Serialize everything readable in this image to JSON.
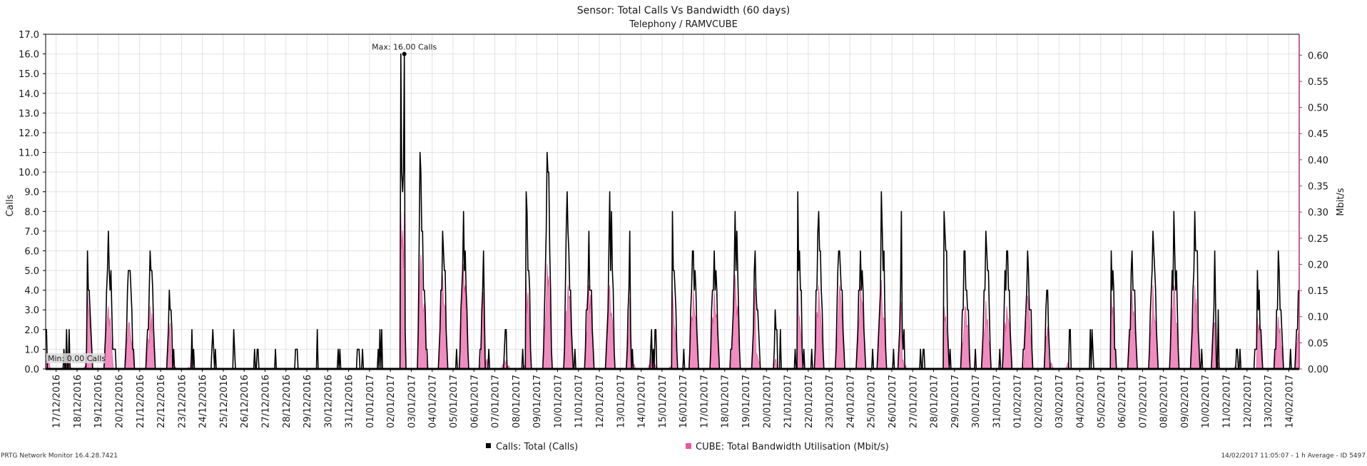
{
  "header": {
    "title": "Sensor: Total Calls Vs Bandwidth (60 days)",
    "subtitle": "Telephony / RAMVCUBE"
  },
  "footer": {
    "left": "PRTG Network Monitor 16.4.28.7421",
    "right": "14/02/2017 11:05:07 - 1 h Average - ID 5497"
  },
  "colors": {
    "calls": "#000000",
    "bandwidth": "#e8569c",
    "bandwidth_fill": "#f08cc0",
    "right_axis": "#b0306a",
    "grid": "#e2e2e2"
  },
  "chart_data": {
    "type": "line",
    "title": "Sensor: Total Calls Vs Bandwidth (60 days)",
    "subtitle": "Telephony / RAMVCUBE",
    "ylabel": "Calls",
    "y2label": "Mbit/s",
    "ylim": [
      0,
      17
    ],
    "y2lim": [
      0,
      0.64
    ],
    "yticks": [
      "0.0",
      "1.0",
      "2.0",
      "3.0",
      "4.0",
      "5.0",
      "6.0",
      "7.0",
      "8.0",
      "9.0",
      "10.0",
      "11.0",
      "12.0",
      "13.0",
      "14.0",
      "15.0",
      "16.0",
      "17.0"
    ],
    "y2ticks": [
      "0.00",
      "0.05",
      "0.10",
      "0.15",
      "0.20",
      "0.25",
      "0.30",
      "0.35",
      "0.40",
      "0.45",
      "0.50",
      "0.55",
      "0.60"
    ],
    "x_start": "16/12/2016 12:00",
    "categories": [
      "17/12/2016",
      "18/12/2016",
      "19/12/2016",
      "20/12/2016",
      "21/12/2016",
      "22/12/2016",
      "23/12/2016",
      "24/12/2016",
      "25/12/2016",
      "26/12/2016",
      "27/12/2016",
      "28/12/2016",
      "29/12/2016",
      "30/12/2016",
      "31/12/2016",
      "01/01/2017",
      "02/01/2017",
      "03/01/2017",
      "04/01/2017",
      "05/01/2017",
      "06/01/2017",
      "07/01/2017",
      "08/01/2017",
      "09/01/2017",
      "10/01/2017",
      "11/01/2017",
      "12/01/2017",
      "13/01/2017",
      "14/01/2017",
      "15/01/2017",
      "16/01/2017",
      "17/01/2017",
      "18/01/2017",
      "19/01/2017",
      "20/01/2017",
      "21/01/2017",
      "22/01/2017",
      "23/01/2017",
      "24/01/2017",
      "25/01/2017",
      "26/01/2017",
      "27/01/2017",
      "28/01/2017",
      "29/01/2017",
      "30/01/2017",
      "31/01/2017",
      "01/02/2017",
      "02/02/2017",
      "03/02/2017",
      "04/02/2017",
      "05/02/2017",
      "06/02/2017",
      "07/02/2017",
      "08/02/2017",
      "09/02/2017",
      "10/02/2017",
      "11/02/2017",
      "12/02/2017",
      "13/02/2017",
      "14/02/2017"
    ],
    "daily_peaks": {
      "calls": [
        2,
        2,
        6,
        7,
        5,
        6,
        3,
        2,
        2,
        2,
        1,
        1,
        1,
        2,
        1,
        1,
        2,
        16,
        7,
        7,
        8,
        3,
        2,
        9,
        11,
        7,
        7,
        9,
        2,
        2,
        8,
        6,
        6,
        8,
        4,
        2,
        9,
        8,
        6,
        6,
        9,
        2,
        1,
        8,
        6,
        7,
        6,
        6,
        2,
        2,
        2,
        6,
        6,
        7,
        8,
        8,
        3,
        1,
        5,
        6
      ],
      "bandwidth_mbit_s": [
        0.04,
        0.02,
        0.15,
        0.12,
        0.09,
        0.12,
        0.03,
        0,
        0,
        0,
        0,
        0,
        0,
        0,
        0,
        0,
        0,
        0.3,
        0.18,
        0.18,
        0.2,
        0.03,
        0.02,
        0.17,
        0.2,
        0.16,
        0.16,
        0.16,
        0.03,
        0.02,
        0.15,
        0.15,
        0.15,
        0.18,
        0.03,
        0,
        0.16,
        0.16,
        0.16,
        0.16,
        0.17,
        0.02,
        0,
        0.12,
        0.12,
        0.13,
        0.12,
        0.14,
        0.02,
        0,
        0,
        0.15,
        0.15,
        0.16,
        0.16,
        0.16,
        0.02,
        0,
        0.1,
        0.1
      ]
    },
    "annotations": {
      "max": "Max: 16.00 Calls",
      "min": "Min: 0.00 Calls"
    },
    "series": [
      {
        "name": "Calls: Total (Calls)",
        "color": "#000000",
        "axis": "left"
      },
      {
        "name": "CUBE: Total Bandwidth Utilisation (Mbit/s)",
        "color": "#e8569c",
        "axis": "right"
      }
    ],
    "legend": "bottom-center",
    "grid": true
  }
}
